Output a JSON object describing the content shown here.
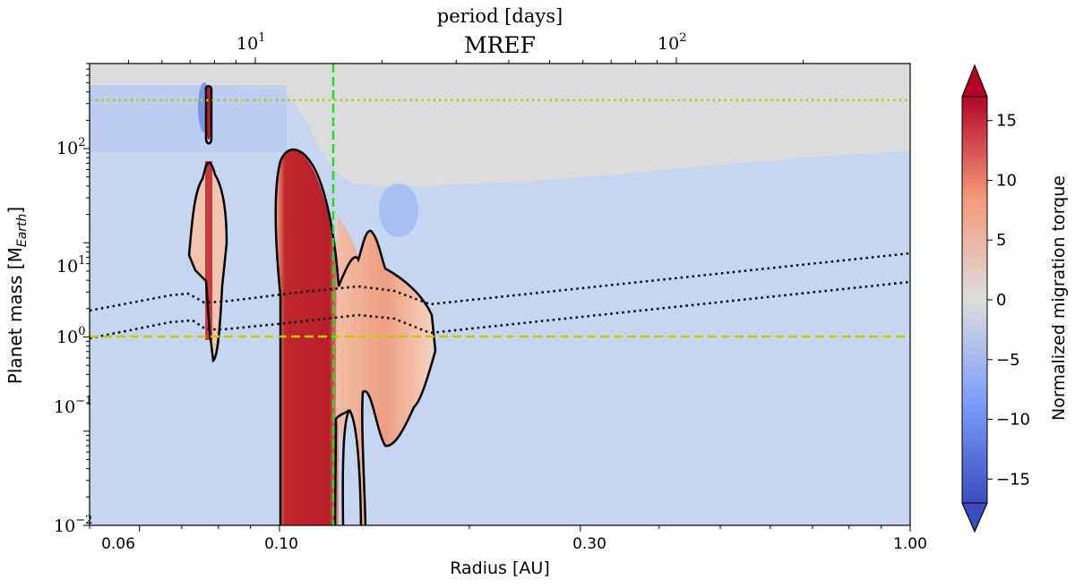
{
  "chart_data": {
    "type": "heatmap",
    "title": "MREF",
    "top_axis_label": "period [days]",
    "xlabel": "Radius [AU]",
    "ylabel": "Planet mass [M",
    "ylabel_subscript": "Earth",
    "ylabel_close": "]",
    "colorbar_label": "Normalized migration torque",
    "x_scale": "log",
    "y_scale": "log",
    "xlim": [
      0.05,
      1.0
    ],
    "ylim": [
      0.01,
      800
    ],
    "x_ticks": [
      {
        "value": 0.06,
        "label": "0.06"
      },
      {
        "value": 0.1,
        "label": "0.10"
      },
      {
        "value": 0.3,
        "label": "0.30"
      },
      {
        "value": 1.0,
        "label": "1.00"
      }
    ],
    "y_ticks": [
      {
        "value": 0.01,
        "base": "10",
        "exp": "−2"
      },
      {
        "value": 0.1,
        "base": "10",
        "exp": "−1"
      },
      {
        "value": 1,
        "base": "10",
        "exp": "0"
      },
      {
        "value": 10,
        "base": "10",
        "exp": "1"
      },
      {
        "value": 100,
        "base": "10",
        "exp": "2"
      }
    ],
    "top_ticks": [
      {
        "value": 10,
        "base": "10",
        "exp": "1"
      },
      {
        "value": 100,
        "base": "10",
        "exp": "2"
      }
    ],
    "colorbar_range": [
      -17,
      17
    ],
    "colorbar_ticks": [
      {
        "value": 15,
        "label": "15"
      },
      {
        "value": 10,
        "label": "10"
      },
      {
        "value": 5,
        "label": "5"
      },
      {
        "value": 0,
        "label": "0"
      },
      {
        "value": -5,
        "label": "−5"
      },
      {
        "value": -10,
        "label": "−10"
      },
      {
        "value": -15,
        "label": "−15"
      }
    ],
    "reference_lines": {
      "isolation_mass_dotted_yellow": 330,
      "one_earth_mass_dashed_yellow": 1.0,
      "vertical_dashed_green_radius": 0.116
    },
    "colors": {
      "positive": "#b40426",
      "negative": "#3b4cc0",
      "neutral": "#dddddd",
      "background_region": "#dcdcdc",
      "green_line": "#22dd22",
      "yellow_line": "#c8c800"
    }
  }
}
